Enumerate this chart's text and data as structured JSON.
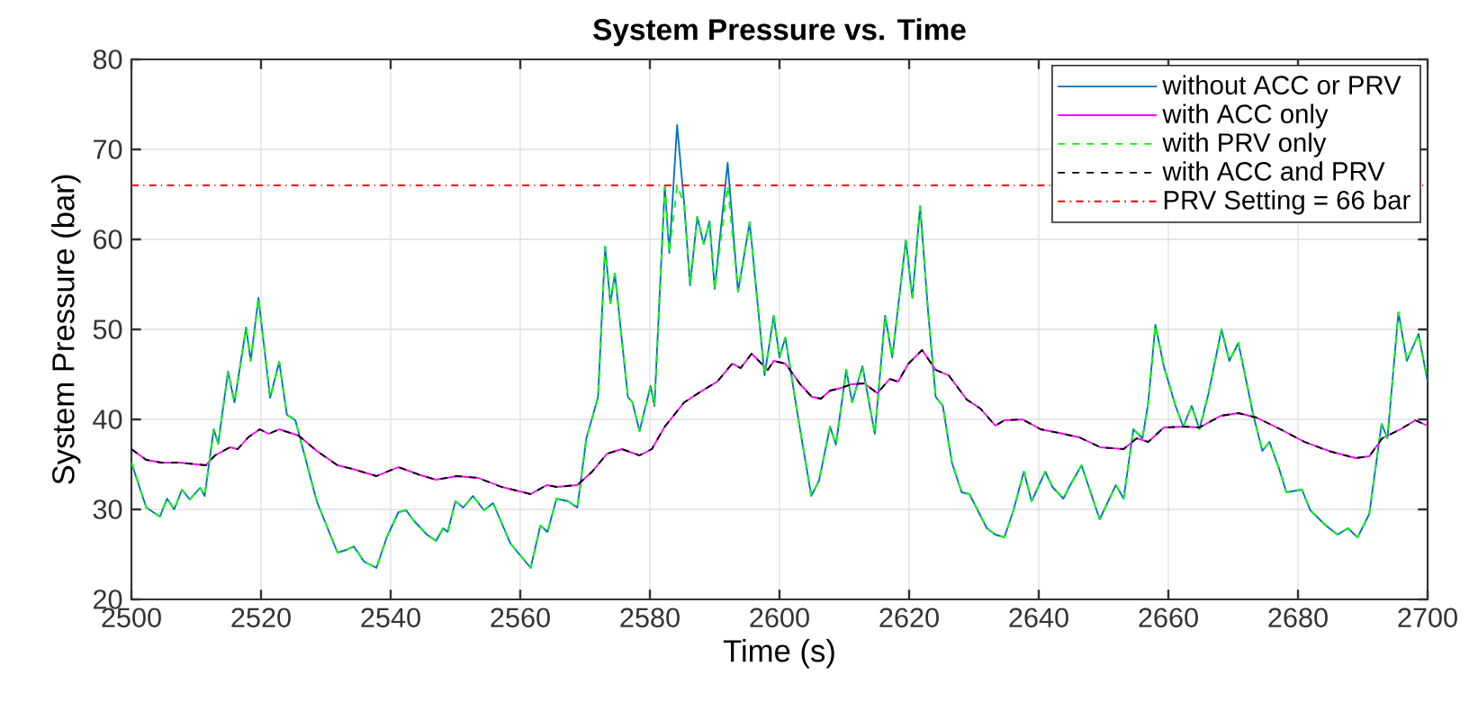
{
  "chart_data": {
    "type": "line",
    "title": "System Pressure vs. Time",
    "xlabel": "Time (s)",
    "ylabel": "System Pressure (bar)",
    "xlim": [
      2500,
      2700
    ],
    "ylim": [
      20,
      80
    ],
    "xticks": [
      2500,
      2520,
      2540,
      2560,
      2580,
      2600,
      2620,
      2640,
      2660,
      2680,
      2700
    ],
    "yticks": [
      20,
      30,
      40,
      50,
      60,
      70,
      80
    ],
    "grid": true,
    "legend": "top right",
    "ref_lines": [
      {
        "axis": "y",
        "value": 66,
        "label": "PRV Setting = 66 bar",
        "color": "#ff0000",
        "line_style": "dashdot"
      }
    ],
    "series": [
      {
        "name": "without ACC or PRV",
        "color": "#0072bd",
        "line_style": "solid",
        "x": [
          2500,
          2502.3,
          2504.4,
          2505.5,
          2506.6,
          2507.8,
          2509,
          2510.6,
          2511.3,
          2512.7,
          2513.4,
          2514.9,
          2515.9,
          2517.7,
          2518.4,
          2519.6,
          2521.4,
          2522.8,
          2524,
          2525.3,
          2528.6,
          2531.8,
          2533.2,
          2534.3,
          2535.9,
          2537.8,
          2539.4,
          2541.2,
          2542.4,
          2543.5,
          2545.6,
          2547,
          2548.1,
          2548.8,
          2550,
          2551.2,
          2552.7,
          2554.4,
          2555.8,
          2558.5,
          2561.6,
          2563.1,
          2564.2,
          2565.6,
          2567.4,
          2568.8,
          2570.2,
          2571.3,
          2572,
          2573.1,
          2573.9,
          2574.6,
          2576.6,
          2577.3,
          2578.4,
          2580.1,
          2580.7,
          2582.3,
          2583,
          2584.2,
          2585.3,
          2586.2,
          2587.3,
          2588.3,
          2589.2,
          2590,
          2592,
          2593.6,
          2595.4,
          2597.7,
          2599.1,
          2600,
          2600.9,
          2602.8,
          2604.9,
          2606.1,
          2607.8,
          2608.7,
          2610.3,
          2611.2,
          2612.8,
          2614.7,
          2616.3,
          2617.4,
          2619.5,
          2620.5,
          2621.7,
          2622.9,
          2624.1,
          2625.2,
          2626.6,
          2628.1,
          2629.3,
          2632,
          2633.3,
          2634.7,
          2636.1,
          2637.7,
          2638.9,
          2641,
          2642.1,
          2643.8,
          2644.7,
          2646.6,
          2649.4,
          2651.9,
          2653.1,
          2654.6,
          2656,
          2656.9,
          2658,
          2659.3,
          2661.1,
          2662.3,
          2663.6,
          2664.8,
          2666.2,
          2668.2,
          2669.4,
          2670.8,
          2673.1,
          2674.5,
          2675.6,
          2677.1,
          2678.2,
          2680.6,
          2681.9,
          2684.3,
          2686.1,
          2687.7,
          2689.2,
          2691,
          2692.9,
          2693.8,
          2695.5,
          2696.8,
          2698.6,
          2700
        ],
        "values": [
          35.2,
          30.2,
          29.2,
          31.2,
          30,
          32.2,
          31.1,
          32.4,
          31.5,
          38.9,
          37.3,
          45.3,
          41.9,
          50.2,
          46.5,
          53.5,
          42.4,
          46.4,
          40.5,
          39.9,
          30.9,
          25.2,
          25.5,
          25.9,
          24.2,
          23.5,
          26.9,
          29.7,
          29.9,
          28.8,
          27.2,
          26.5,
          27.9,
          27.5,
          30.9,
          30.2,
          31.5,
          29.9,
          30.7,
          26.2,
          23.5,
          28.2,
          27.5,
          31.2,
          30.9,
          30.2,
          37.9,
          40.7,
          42.5,
          59.2,
          52.9,
          56.2,
          42.5,
          41.9,
          38.7,
          43.7,
          41.5,
          65.9,
          58.5,
          72.7,
          63.9,
          54.9,
          62.5,
          59.5,
          62,
          54.5,
          68.5,
          54.2,
          61.9,
          44.9,
          51.5,
          46.9,
          49.1,
          40.5,
          31.5,
          33.2,
          39.2,
          37.2,
          45.5,
          41.9,
          45.9,
          38.4,
          51.5,
          46.9,
          59.9,
          53.5,
          63.7,
          52.2,
          42.5,
          41.5,
          35.2,
          31.9,
          31.7,
          27.9,
          27.2,
          26.9,
          29.9,
          34.2,
          30.9,
          34.2,
          32.5,
          31.2,
          32.5,
          34.9,
          28.9,
          32.7,
          31.2,
          38.9,
          37.9,
          41.9,
          50.5,
          45.9,
          41.5,
          39.2,
          41.5,
          38.9,
          42.9,
          50,
          46.5,
          48.5,
          40.5,
          36.5,
          37.5,
          34.5,
          31.9,
          32.2,
          29.9,
          28.2,
          27.2,
          27.9,
          26.9,
          29.5,
          39.5,
          37.9,
          51.9,
          46.5,
          49.5,
          44.2
        ]
      },
      {
        "name": "with ACC only",
        "color": "#ff00ff",
        "line_style": "solid",
        "x": [
          2500,
          2502.3,
          2504.6,
          2507.4,
          2511.5,
          2512.9,
          2515.2,
          2516.4,
          2518,
          2519.8,
          2521.2,
          2522.8,
          2525.8,
          2528.6,
          2531.8,
          2534.1,
          2537.8,
          2541.2,
          2544.2,
          2547,
          2550.2,
          2553.5,
          2557.1,
          2561.6,
          2564.1,
          2565.6,
          2568.8,
          2571.1,
          2573.4,
          2575.7,
          2578.4,
          2580.3,
          2582.3,
          2585.3,
          2588.1,
          2590.4,
          2592.7,
          2594,
          2595.7,
          2598.2,
          2599.1,
          2600.9,
          2603.2,
          2605,
          2606.4,
          2607.8,
          2609.6,
          2611,
          2613.1,
          2615.1,
          2617,
          2618.3,
          2619.9,
          2622,
          2624.1,
          2626.1,
          2628.9,
          2631,
          2633.3,
          2634.7,
          2637.5,
          2640.3,
          2643.1,
          2646.3,
          2649.5,
          2653.1,
          2655.1,
          2656.9,
          2659.3,
          2662.5,
          2664.8,
          2668.1,
          2670.8,
          2673.6,
          2677.3,
          2681,
          2684.7,
          2688.9,
          2691,
          2693,
          2695.8,
          2698.1,
          2700
        ],
        "values": [
          36.7,
          35.5,
          35.2,
          35.2,
          34.9,
          36,
          36.9,
          36.7,
          38,
          38.9,
          38.4,
          38.9,
          38.2,
          36.5,
          34.9,
          34.5,
          33.7,
          34.7,
          33.9,
          33.3,
          33.7,
          33.5,
          32.5,
          31.7,
          32.7,
          32.5,
          32.7,
          34.2,
          36.2,
          36.7,
          36,
          36.7,
          39.2,
          41.9,
          43.2,
          44.2,
          46.2,
          45.7,
          47.3,
          45.5,
          46.5,
          46.2,
          43.9,
          42.5,
          42.3,
          43.2,
          43.5,
          43.9,
          44,
          42.9,
          44.5,
          44.2,
          46.2,
          47.7,
          45.5,
          44.9,
          42.2,
          41.2,
          39.3,
          39.9,
          40,
          38.9,
          38.5,
          38,
          36.9,
          36.7,
          37.9,
          37.5,
          39.1,
          39.2,
          39.1,
          40.4,
          40.7,
          40.2,
          38.9,
          37.5,
          36.5,
          35.7,
          35.9,
          37.9,
          38.9,
          39.9,
          39.3
        ]
      },
      {
        "name": "with PRV only",
        "color": "#00ff00",
        "line_style": "dashed",
        "x": [
          2500,
          2502.3,
          2504.4,
          2505.5,
          2506.6,
          2507.8,
          2509,
          2510.6,
          2511.3,
          2512.7,
          2513.4,
          2514.9,
          2515.9,
          2517.7,
          2518.4,
          2519.6,
          2521.4,
          2522.8,
          2524,
          2525.3,
          2528.6,
          2531.8,
          2533.2,
          2534.3,
          2535.9,
          2537.8,
          2539.4,
          2541.2,
          2542.4,
          2543.5,
          2545.6,
          2547,
          2548.1,
          2548.8,
          2550,
          2551.2,
          2552.7,
          2554.4,
          2555.8,
          2558.5,
          2561.6,
          2563.1,
          2564.2,
          2565.6,
          2567.4,
          2568.8,
          2570.2,
          2571.3,
          2572,
          2573.1,
          2573.9,
          2574.6,
          2576.6,
          2577.3,
          2578.4,
          2580.1,
          2580.7,
          2582.3,
          2583,
          2584.2,
          2585.3,
          2586.2,
          2587.3,
          2588.3,
          2589.2,
          2590,
          2592,
          2593.6,
          2595.4,
          2597.7,
          2599.1,
          2600,
          2600.9,
          2602.8,
          2604.9,
          2606.1,
          2607.8,
          2608.7,
          2610.3,
          2611.2,
          2612.8,
          2614.7,
          2616.3,
          2617.4,
          2619.5,
          2620.5,
          2621.7,
          2622.9,
          2624.1,
          2625.2,
          2626.6,
          2628.1,
          2629.3,
          2632,
          2633.3,
          2634.7,
          2636.1,
          2637.7,
          2638.9,
          2641,
          2642.1,
          2643.8,
          2644.7,
          2646.6,
          2649.4,
          2651.9,
          2653.1,
          2654.6,
          2656,
          2656.9,
          2658,
          2659.3,
          2661.1,
          2662.3,
          2663.6,
          2664.8,
          2666.2,
          2668.2,
          2669.4,
          2670.8,
          2673.1,
          2674.5,
          2675.6,
          2677.1,
          2678.2,
          2680.6,
          2681.9,
          2684.3,
          2686.1,
          2687.7,
          2689.2,
          2691,
          2692.9,
          2693.8,
          2695.5,
          2696.8,
          2698.6,
          2700
        ],
        "values": [
          35.2,
          30.2,
          29.2,
          31.2,
          30,
          32.2,
          31.1,
          32.4,
          31.5,
          38.9,
          37.3,
          45.3,
          41.9,
          50.2,
          46.5,
          53.5,
          42.4,
          46.4,
          40.5,
          39.9,
          30.9,
          25.2,
          25.5,
          25.9,
          24.2,
          23.5,
          26.9,
          29.7,
          29.9,
          28.8,
          27.2,
          26.5,
          27.9,
          27.5,
          30.9,
          30.2,
          31.5,
          29.9,
          30.7,
          26.2,
          23.5,
          28.2,
          27.5,
          31.2,
          30.9,
          30.2,
          37.9,
          40.7,
          42.5,
          59.2,
          52.9,
          56.2,
          42.5,
          41.9,
          38.7,
          43.7,
          41.5,
          65.9,
          58.5,
          66,
          63.9,
          54.9,
          62.5,
          59.5,
          62,
          54.5,
          66,
          54.2,
          61.9,
          44.9,
          51.5,
          46.9,
          49.1,
          40.5,
          31.5,
          33.2,
          39.2,
          37.2,
          45.5,
          41.9,
          45.9,
          38.4,
          51.5,
          46.9,
          59.9,
          53.5,
          63.7,
          52.2,
          42.5,
          41.5,
          35.2,
          31.9,
          31.7,
          27.9,
          27.2,
          26.9,
          29.9,
          34.2,
          30.9,
          34.2,
          32.5,
          31.2,
          32.5,
          34.9,
          28.9,
          32.7,
          31.2,
          38.9,
          37.9,
          41.9,
          50.5,
          45.9,
          41.5,
          39.2,
          41.5,
          38.9,
          42.9,
          50,
          46.5,
          48.5,
          40.5,
          36.5,
          37.5,
          34.5,
          31.9,
          32.2,
          29.9,
          28.2,
          27.2,
          27.9,
          26.9,
          29.5,
          39.5,
          37.9,
          51.9,
          46.5,
          49.5,
          44.2
        ]
      },
      {
        "name": "with ACC and PRV",
        "color": "#000000",
        "line_style": "dashed",
        "x": [
          2500,
          2502.3,
          2504.6,
          2507.4,
          2511.5,
          2512.9,
          2515.2,
          2516.4,
          2518,
          2519.8,
          2521.2,
          2522.8,
          2525.8,
          2528.6,
          2531.8,
          2534.1,
          2537.8,
          2541.2,
          2544.2,
          2547,
          2550.2,
          2553.5,
          2557.1,
          2561.6,
          2564.1,
          2565.6,
          2568.8,
          2571.1,
          2573.4,
          2575.7,
          2578.4,
          2580.3,
          2582.3,
          2585.3,
          2588.1,
          2590.4,
          2592.7,
          2594,
          2595.7,
          2598.2,
          2599.1,
          2600.9,
          2603.2,
          2605,
          2606.4,
          2607.8,
          2609.6,
          2611,
          2613.1,
          2615.1,
          2617,
          2618.3,
          2619.9,
          2622,
          2624.1,
          2626.1,
          2628.9,
          2631,
          2633.3,
          2634.7,
          2637.5,
          2640.3,
          2643.1,
          2646.3,
          2649.5,
          2653.1,
          2655.1,
          2656.9,
          2659.3,
          2662.5,
          2664.8,
          2668.1,
          2670.8,
          2673.6,
          2677.3,
          2681,
          2684.7,
          2688.9,
          2691,
          2693,
          2695.8,
          2698.1,
          2700
        ],
        "values": [
          36.7,
          35.5,
          35.2,
          35.2,
          34.9,
          36,
          36.9,
          36.7,
          38,
          38.9,
          38.4,
          38.9,
          38.2,
          36.5,
          34.9,
          34.5,
          33.7,
          34.7,
          33.9,
          33.3,
          33.7,
          33.5,
          32.5,
          31.7,
          32.7,
          32.5,
          32.7,
          34.2,
          36.2,
          36.7,
          36,
          36.7,
          39.2,
          41.9,
          43.2,
          44.2,
          46.2,
          45.7,
          47.3,
          45.5,
          46.5,
          46.2,
          43.9,
          42.5,
          42.3,
          43.2,
          43.5,
          43.9,
          44,
          42.9,
          44.5,
          44.2,
          46.2,
          47.7,
          45.5,
          44.9,
          42.2,
          41.2,
          39.3,
          39.9,
          40,
          38.9,
          38.5,
          38,
          36.9,
          36.7,
          37.9,
          37.5,
          39.1,
          39.2,
          39.1,
          40.4,
          40.7,
          40.2,
          38.9,
          37.5,
          36.5,
          35.7,
          35.9,
          37.9,
          38.9,
          39.9,
          39.3
        ]
      }
    ]
  }
}
